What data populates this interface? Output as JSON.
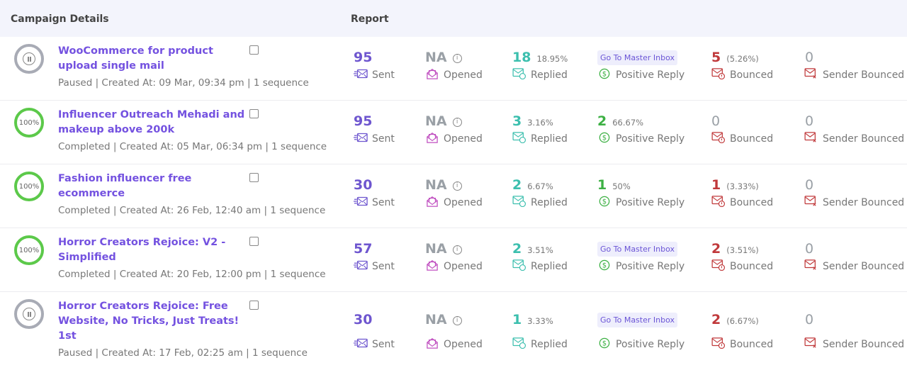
{
  "header": {
    "campaign": "Campaign Details",
    "report": "Report"
  },
  "labels": {
    "sent": "Sent",
    "opened": "Opened",
    "replied": "Replied",
    "positive": "Positive Reply",
    "bounced": "Bounced",
    "sender_bounced": "Sender Bounced",
    "inbox": "Go To Master Inbox"
  },
  "colors": {
    "name": "#7452e0",
    "sent": "#6e56cf",
    "replied": "#3cbfae",
    "positive": "#3cb043",
    "bounced": "#c0393b",
    "muted": "#9aa0a6"
  },
  "rows": [
    {
      "name": "WooCommerce for product upload single mail",
      "status": "paused",
      "progress": "",
      "meta": "Paused | Created At: 09 Mar, 09:34 pm | 1 sequence",
      "sent": "95",
      "opened": "NA",
      "replied": "18",
      "replied_pct": "18.95%",
      "positive": null,
      "positive_pct": "",
      "bounced": "5",
      "bounced_pct": "(5.26%)",
      "sender_bounced": "0"
    },
    {
      "name": "Influencer Outreach Mehadi and makeup above 200k",
      "status": "completed",
      "progress": "100%",
      "meta": "Completed | Created At: 05 Mar, 06:34 pm | 1 sequence",
      "sent": "95",
      "opened": "NA",
      "replied": "3",
      "replied_pct": "3.16%",
      "positive": "2",
      "positive_pct": "66.67%",
      "bounced": "0",
      "bounced_pct": "",
      "sender_bounced": "0"
    },
    {
      "name": "Fashion influencer free ecommerce",
      "status": "completed",
      "progress": "100%",
      "meta": "Completed | Created At: 26 Feb, 12:40 am | 1 sequence",
      "sent": "30",
      "opened": "NA",
      "replied": "2",
      "replied_pct": "6.67%",
      "positive": "1",
      "positive_pct": "50%",
      "bounced": "1",
      "bounced_pct": "(3.33%)",
      "sender_bounced": "0"
    },
    {
      "name": "Horror Creators Rejoice: V2 - Simplified",
      "status": "completed",
      "progress": "100%",
      "meta": "Completed | Created At: 20 Feb, 12:00 pm | 1 sequence",
      "sent": "57",
      "opened": "NA",
      "replied": "2",
      "replied_pct": "3.51%",
      "positive": null,
      "positive_pct": "",
      "bounced": "2",
      "bounced_pct": "(3.51%)",
      "sender_bounced": "0"
    },
    {
      "name": "Horror Creators Rejoice: Free Website, No Tricks, Just Treats! 1st",
      "status": "paused",
      "progress": "",
      "meta": "Paused | Created At: 17 Feb, 02:25 am | 1 sequence",
      "sent": "30",
      "opened": "NA",
      "replied": "1",
      "replied_pct": "3.33%",
      "positive": null,
      "positive_pct": "",
      "bounced": "2",
      "bounced_pct": "(6.67%)",
      "sender_bounced": "0"
    }
  ]
}
